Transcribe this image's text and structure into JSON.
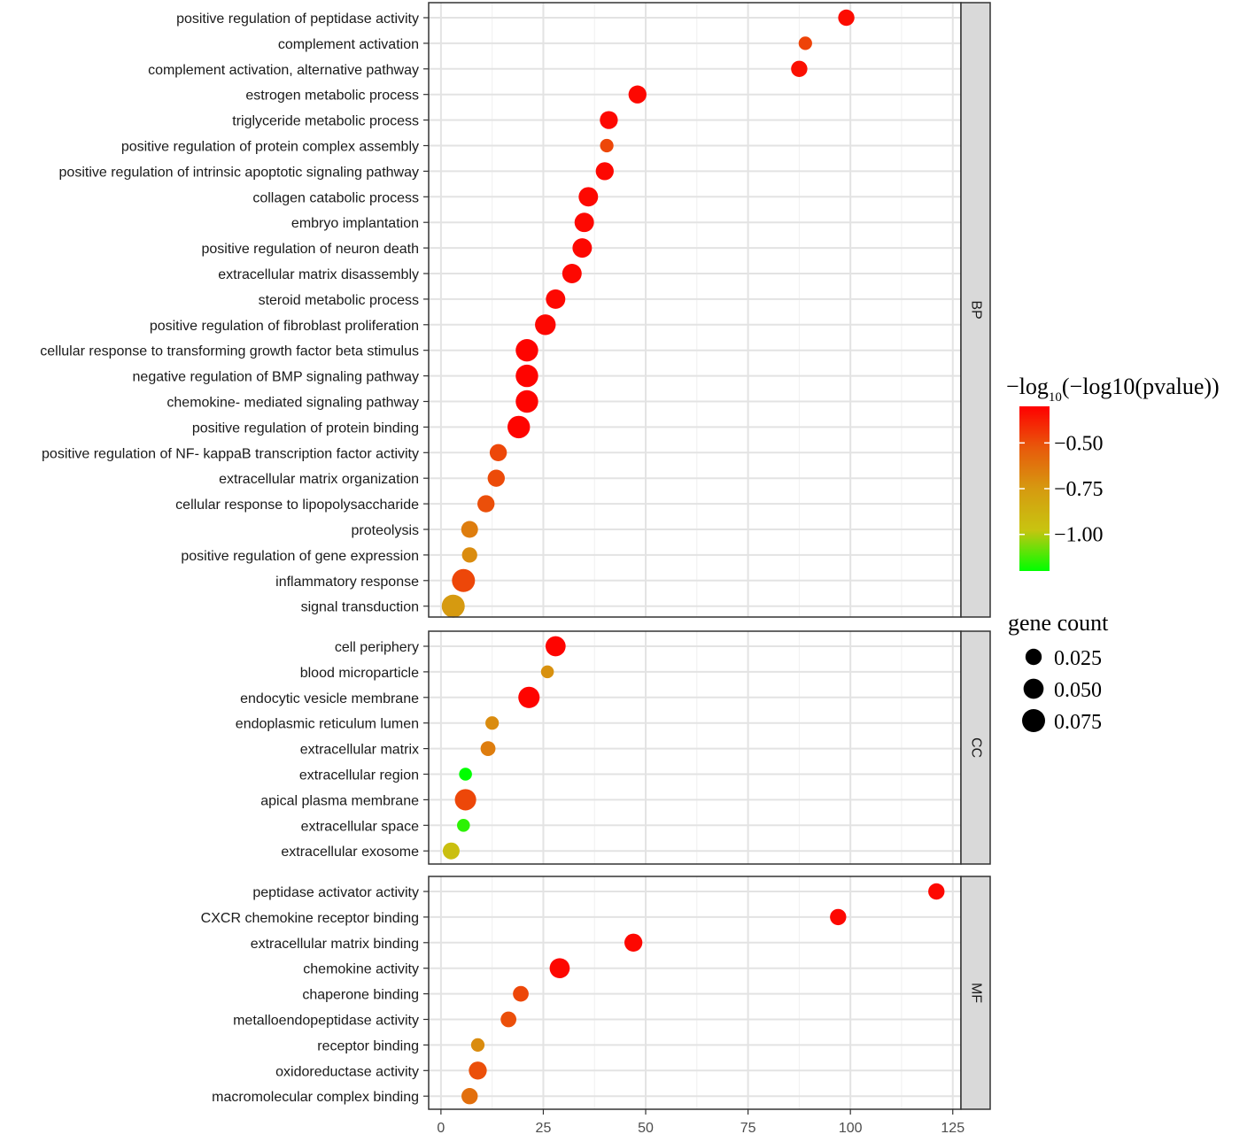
{
  "chart_data": {
    "type": "scatter",
    "xlim": [
      -3,
      127
    ],
    "x_ticks": [
      0,
      25,
      50,
      75,
      100,
      125
    ],
    "x_tick_labels": [
      "0",
      "25",
      "50",
      "75",
      "100",
      "125"
    ],
    "facets": [
      {
        "name": "BP",
        "terms": [
          {
            "label": "positive regulation of peptidase activity",
            "x": 99,
            "color": -0.33,
            "gene_count": 0.025
          },
          {
            "label": "complement activation",
            "x": 89,
            "color": -0.47,
            "gene_count": 0.012
          },
          {
            "label": "complement activation, alternative pathway",
            "x": 87.5,
            "color": -0.34,
            "gene_count": 0.025
          },
          {
            "label": "estrogen metabolic process",
            "x": 48,
            "color": -0.32,
            "gene_count": 0.035
          },
          {
            "label": "triglyceride metabolic process",
            "x": 41,
            "color": -0.32,
            "gene_count": 0.035
          },
          {
            "label": "positive regulation of protein complex assembly",
            "x": 40.5,
            "color": -0.48,
            "gene_count": 0.012
          },
          {
            "label": "positive regulation of intrinsic apoptotic signaling pathway",
            "x": 40,
            "color": -0.32,
            "gene_count": 0.035
          },
          {
            "label": "collagen catabolic process",
            "x": 36,
            "color": -0.32,
            "gene_count": 0.045
          },
          {
            "label": "embryo implantation",
            "x": 35,
            "color": -0.32,
            "gene_count": 0.045
          },
          {
            "label": "positive regulation of neuron death",
            "x": 34.5,
            "color": -0.32,
            "gene_count": 0.045
          },
          {
            "label": "extracellular matrix disassembly",
            "x": 32,
            "color": -0.32,
            "gene_count": 0.045
          },
          {
            "label": "steroid metabolic process",
            "x": 28,
            "color": -0.32,
            "gene_count": 0.045
          },
          {
            "label": "positive regulation of fibroblast proliferation",
            "x": 25.5,
            "color": -0.32,
            "gene_count": 0.055
          },
          {
            "label": "cellular response to transforming growth factor beta stimulus",
            "x": 21,
            "color": -0.31,
            "gene_count": 0.07
          },
          {
            "label": "negative regulation of BMP signaling pathway",
            "x": 21,
            "color": -0.31,
            "gene_count": 0.07
          },
          {
            "label": "chemokine- mediated signaling pathway",
            "x": 21,
            "color": -0.31,
            "gene_count": 0.07
          },
          {
            "label": "positive regulation of protein binding",
            "x": 19,
            "color": -0.31,
            "gene_count": 0.07
          },
          {
            "label": "positive regulation of NF- kappaB transcription factor activity",
            "x": 14,
            "color": -0.48,
            "gene_count": 0.03
          },
          {
            "label": "extracellular matrix organization",
            "x": 13.5,
            "color": -0.49,
            "gene_count": 0.03
          },
          {
            "label": "cellular response to lipopolysaccharide",
            "x": 11,
            "color": -0.5,
            "gene_count": 0.03
          },
          {
            "label": "proteolysis",
            "x": 7,
            "color": -0.65,
            "gene_count": 0.028
          },
          {
            "label": "positive regulation of gene expression",
            "x": 7,
            "color": -0.7,
            "gene_count": 0.02
          },
          {
            "label": "inflammatory response",
            "x": 5.5,
            "color": -0.48,
            "gene_count": 0.075
          },
          {
            "label": "signal transduction",
            "x": 3,
            "color": -0.75,
            "gene_count": 0.075
          }
        ]
      },
      {
        "name": "CC",
        "terms": [
          {
            "label": "cell periphery",
            "x": 28,
            "color": -0.31,
            "gene_count": 0.05
          },
          {
            "label": "blood microparticle",
            "x": 26,
            "color": -0.72,
            "gene_count": 0.01
          },
          {
            "label": "endocytic vesicle membrane",
            "x": 21.5,
            "color": -0.31,
            "gene_count": 0.06
          },
          {
            "label": "endoplasmic reticulum lumen",
            "x": 12.5,
            "color": -0.7,
            "gene_count": 0.012
          },
          {
            "label": "extracellular matrix",
            "x": 11.5,
            "color": -0.65,
            "gene_count": 0.018
          },
          {
            "label": "extracellular region",
            "x": 6,
            "color": -1.2,
            "gene_count": 0.01
          },
          {
            "label": "apical plasma membrane",
            "x": 6,
            "color": -0.48,
            "gene_count": 0.06
          },
          {
            "label": "extracellular space",
            "x": 5.5,
            "color": -1.15,
            "gene_count": 0.01
          },
          {
            "label": "extracellular exosome",
            "x": 2.5,
            "color": -0.95,
            "gene_count": 0.028
          }
        ]
      },
      {
        "name": "MF",
        "terms": [
          {
            "label": "peptidase activator activity",
            "x": 121,
            "color": -0.32,
            "gene_count": 0.025
          },
          {
            "label": "CXCR chemokine receptor binding",
            "x": 97,
            "color": -0.32,
            "gene_count": 0.025
          },
          {
            "label": "extracellular matrix binding",
            "x": 47,
            "color": -0.32,
            "gene_count": 0.035
          },
          {
            "label": "chemokine activity",
            "x": 29,
            "color": -0.32,
            "gene_count": 0.05
          },
          {
            "label": "chaperone binding",
            "x": 19.5,
            "color": -0.48,
            "gene_count": 0.022
          },
          {
            "label": "metalloendopeptidase activity",
            "x": 16.5,
            "color": -0.5,
            "gene_count": 0.022
          },
          {
            "label": "receptor binding",
            "x": 9,
            "color": -0.7,
            "gene_count": 0.012
          },
          {
            "label": "oxidoreductase activity",
            "x": 9,
            "color": -0.5,
            "gene_count": 0.035
          },
          {
            "label": "macromolecular complex binding",
            "x": 7,
            "color": -0.6,
            "gene_count": 0.025
          }
        ]
      }
    ],
    "color_legend": {
      "title_prefix": "−log",
      "title_subscript": "10",
      "title_suffix": "(−log10(pvalue))",
      "range": [
        -1.2,
        -0.3
      ],
      "ticks": [
        -0.5,
        -0.75,
        -1.0
      ],
      "tick_labels": [
        "−0.50",
        "−0.75",
        "−1.00"
      ],
      "stops": [
        "#ff0000",
        "#e8590b",
        "#d69a10",
        "#c8c410",
        "#00ff00"
      ]
    },
    "size_legend": {
      "title": "gene count",
      "values": [
        0.025,
        0.05,
        0.075
      ],
      "labels": [
        "0.025",
        "0.050",
        "0.075"
      ]
    }
  }
}
